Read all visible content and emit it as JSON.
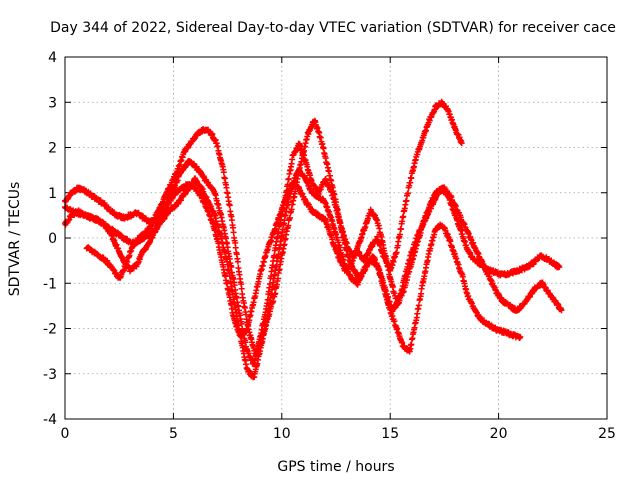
{
  "chart_data": {
    "type": "scatter",
    "title": "Day 344 of 2022, Sidereal Day-to-day VTEC variation (SDTVAR) for receiver cace",
    "xlabel": "GPS time / hours",
    "ylabel": "SDTVAR / TECUs",
    "xlim": [
      0,
      25
    ],
    "ylim": [
      -4,
      4
    ],
    "xticks": [
      "0",
      "5",
      "10",
      "15",
      "20",
      "25"
    ],
    "yticks": [
      "4",
      "3",
      "2",
      "1",
      "0",
      "-1",
      "-2",
      "-3",
      "-4"
    ],
    "grid": true,
    "marker": "+",
    "color": "#ff0000",
    "series": [
      {
        "x": [
          0.0,
          0.3,
          0.6,
          0.9,
          1.2,
          1.5,
          1.8,
          2.1,
          2.4,
          2.7,
          3.0,
          3.3,
          3.6,
          3.9,
          4.2,
          4.5,
          4.8,
          5.1,
          5.4,
          5.7,
          6.0,
          6.3,
          6.6,
          6.9,
          7.2,
          7.5,
          7.8,
          8.1,
          8.4,
          8.7,
          9.0,
          9.3,
          9.6,
          9.9,
          10.2,
          10.5,
          10.8,
          11.1,
          11.4,
          11.7,
          12.0,
          12.3,
          12.6,
          12.9,
          13.2,
          13.5,
          13.8,
          14.1,
          14.4,
          14.7,
          15.0,
          15.3,
          15.6,
          15.9,
          16.2,
          16.5,
          16.8,
          17.1,
          17.4,
          17.7,
          18.0,
          18.3
        ],
        "y": [
          0.8,
          1.0,
          1.1,
          1.05,
          0.95,
          0.85,
          0.75,
          0.6,
          0.5,
          0.45,
          0.5,
          0.55,
          0.45,
          0.35,
          0.4,
          0.6,
          0.9,
          1.2,
          1.5,
          1.7,
          1.6,
          1.4,
          1.2,
          1.0,
          0.5,
          -0.2,
          -1.0,
          -1.8,
          -2.5,
          -2.8,
          -2.2,
          -1.5,
          -0.5,
          0.3,
          1.0,
          1.8,
          2.1,
          1.7,
          1.2,
          1.0,
          1.3,
          1.0,
          0.5,
          0.0,
          -0.4,
          -0.3,
          -0.5,
          -0.2,
          0.0,
          -0.4,
          -0.7,
          -0.3,
          0.5,
          1.2,
          1.8,
          2.2,
          2.6,
          2.9,
          3.0,
          2.8,
          2.4,
          2.1
        ]
      },
      {
        "x": [
          0.0,
          0.3,
          0.6,
          0.9,
          1.2,
          1.5,
          1.8,
          2.1,
          2.4,
          2.7,
          3.0,
          3.3,
          3.6,
          3.9,
          4.2,
          4.5,
          4.8,
          5.1,
          5.4,
          5.7,
          6.0,
          6.3,
          6.6,
          6.9,
          7.2,
          7.5,
          7.8,
          8.1,
          8.4,
          8.7,
          9.0,
          9.3,
          9.6,
          9.9,
          10.2,
          10.5,
          10.8,
          11.1,
          11.4,
          11.7,
          12.0,
          12.3,
          12.6,
          12.9,
          13.2,
          13.5,
          13.8,
          14.1,
          14.4,
          14.7,
          15.0,
          15.3,
          15.6,
          15.9,
          16.2,
          16.5,
          16.8,
          17.1,
          17.4,
          17.7,
          18.0,
          18.3,
          18.6,
          18.9,
          19.2,
          19.5,
          19.8,
          20.1,
          20.4,
          20.7,
          21.0
        ],
        "y": [
          0.3,
          0.5,
          0.6,
          0.5,
          0.45,
          0.4,
          0.3,
          0.2,
          0.1,
          0.0,
          -0.1,
          -0.1,
          0.0,
          0.1,
          0.2,
          0.4,
          0.6,
          0.7,
          0.9,
          1.1,
          1.3,
          1.1,
          0.8,
          0.5,
          0.0,
          -0.6,
          -1.4,
          -2.2,
          -2.9,
          -3.1,
          -2.5,
          -1.8,
          -1.0,
          -0.2,
          0.6,
          1.2,
          1.5,
          1.3,
          1.0,
          0.9,
          0.8,
          0.4,
          -0.1,
          -0.6,
          -0.9,
          -1.0,
          -0.7,
          -0.5,
          -0.6,
          -1.1,
          -1.6,
          -2.0,
          -2.4,
          -2.5,
          -1.8,
          -1.0,
          -0.3,
          0.2,
          0.3,
          0.0,
          -0.4,
          -0.8,
          -1.3,
          -1.6,
          -1.8,
          -1.9,
          -2.0,
          -2.05,
          -2.1,
          -2.15,
          -2.2
        ]
      },
      {
        "x": [
          1.0,
          1.3,
          1.6,
          1.9,
          2.2,
          2.5,
          2.8,
          3.1,
          3.4,
          3.7,
          4.0,
          4.3,
          4.6,
          4.9,
          5.2,
          5.5,
          5.8,
          6.1,
          6.4,
          6.7,
          7.0,
          7.3,
          7.6,
          7.9,
          8.2,
          8.5,
          8.8,
          9.1,
          9.4,
          9.7,
          10.0,
          10.3,
          10.6,
          10.9,
          11.2,
          11.5,
          11.8,
          12.1,
          12.4,
          12.7,
          13.0,
          13.3,
          13.6,
          13.9,
          14.2,
          14.5,
          14.8,
          15.1,
          15.4,
          15.7,
          16.0,
          16.3,
          16.6,
          16.9,
          17.2,
          17.5,
          17.8,
          18.1,
          18.4,
          18.7,
          19.0,
          19.3,
          19.6,
          19.9,
          20.2,
          20.5,
          20.8,
          21.1,
          21.4,
          21.7,
          22.0,
          22.3,
          22.6,
          22.9
        ],
        "y": [
          -0.2,
          -0.3,
          -0.4,
          -0.5,
          -0.7,
          -0.9,
          -0.6,
          -0.2,
          0.0,
          0.1,
          0.3,
          0.6,
          0.9,
          1.2,
          1.5,
          1.9,
          2.1,
          2.3,
          2.4,
          2.35,
          2.1,
          1.5,
          0.7,
          -0.3,
          -1.3,
          -2.1,
          -2.6,
          -2.2,
          -1.7,
          -1.2,
          -0.4,
          0.3,
          1.0,
          1.7,
          2.3,
          2.6,
          2.2,
          1.6,
          1.0,
          0.3,
          -0.3,
          -0.7,
          -0.9,
          -0.6,
          -0.4,
          -0.7,
          -1.2,
          -1.6,
          -1.4,
          -0.8,
          -0.3,
          0.1,
          0.4,
          0.7,
          1.0,
          1.1,
          0.9,
          0.6,
          0.3,
          0.0,
          -0.3,
          -0.6,
          -0.9,
          -1.2,
          -1.4,
          -1.5,
          -1.6,
          -1.5,
          -1.3,
          -1.1,
          -1.0,
          -1.2,
          -1.4,
          -1.6
        ]
      },
      {
        "x": [
          0.0,
          0.3,
          0.6,
          0.9,
          1.2,
          1.5,
          1.8,
          2.1,
          2.4,
          2.7,
          3.0,
          3.3,
          3.6,
          3.9,
          4.2,
          4.5,
          4.8,
          5.1,
          5.4,
          5.7,
          6.0,
          6.3,
          6.6,
          6.9,
          7.2,
          7.5,
          7.8,
          8.1,
          8.4,
          8.7,
          9.0,
          9.3,
          9.6,
          9.9,
          10.2,
          10.5,
          10.8,
          11.1,
          11.4,
          11.7,
          12.0,
          12.3,
          12.6,
          12.9,
          13.2,
          13.5,
          13.8,
          14.1,
          14.4,
          14.7,
          15.0,
          15.3,
          15.6,
          15.9,
          16.2,
          16.5,
          16.8,
          17.1,
          17.4,
          17.7,
          18.0,
          18.3,
          18.6,
          18.9,
          19.2,
          19.5,
          19.8,
          20.1,
          20.4,
          20.7,
          21.0,
          21.3,
          21.6,
          21.9,
          22.2,
          22.5,
          22.8
        ],
        "y": [
          0.7,
          0.6,
          0.55,
          0.5,
          0.45,
          0.4,
          0.3,
          0.1,
          -0.2,
          -0.5,
          -0.7,
          -0.6,
          -0.3,
          -0.1,
          0.2,
          0.5,
          0.8,
          1.0,
          1.1,
          1.2,
          1.1,
          0.9,
          0.6,
          0.2,
          -0.4,
          -1.1,
          -1.8,
          -2.2,
          -2.0,
          -1.4,
          -0.8,
          -0.3,
          0.1,
          0.5,
          0.9,
          1.2,
          1.1,
          0.8,
          0.6,
          0.5,
          0.4,
          0.0,
          -0.4,
          -0.7,
          -0.6,
          -0.2,
          0.2,
          0.6,
          0.4,
          -0.2,
          -0.9,
          -1.4,
          -1.2,
          -0.7,
          -0.2,
          0.3,
          0.7,
          1.0,
          1.1,
          0.9,
          0.5,
          0.1,
          -0.3,
          -0.5,
          -0.6,
          -0.7,
          -0.75,
          -0.8,
          -0.8,
          -0.75,
          -0.7,
          -0.65,
          -0.55,
          -0.4,
          -0.45,
          -0.55,
          -0.65
        ]
      }
    ]
  }
}
